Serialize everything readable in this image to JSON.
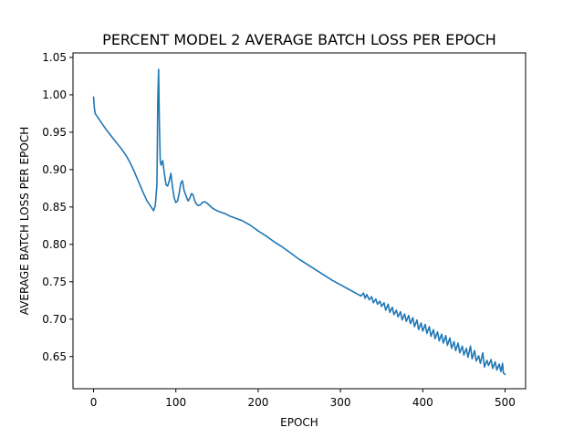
{
  "chart_data": {
    "type": "line",
    "title": "PERCENT MODEL 2 AVERAGE BATCH LOSS PER EPOCH",
    "xlabel": "EPOCH",
    "ylabel": "AVERAGE BATCH LOSS PER EPOCH",
    "xlim": [
      -25,
      525
    ],
    "ylim": [
      0.607,
      1.056
    ],
    "grid": false,
    "xticks": [
      0,
      100,
      200,
      300,
      400,
      500
    ],
    "xtick_labels": [
      "0",
      "100",
      "200",
      "300",
      "400",
      "500"
    ],
    "yticks": [
      0.65,
      0.7,
      0.75,
      0.8,
      0.85,
      0.9,
      0.95,
      1.0,
      1.05
    ],
    "ytick_labels": [
      "0.65",
      "0.70",
      "0.75",
      "0.80",
      "0.85",
      "0.90",
      "0.95",
      "1.00",
      "1.05"
    ],
    "series": [
      {
        "color": "#1f77b4",
        "x": [
          0,
          1,
          2,
          5,
          10,
          15,
          20,
          25,
          30,
          35,
          40,
          45,
          50,
          55,
          60,
          65,
          70,
          73,
          75,
          77,
          78,
          79,
          80,
          81,
          82,
          84,
          86,
          88,
          90,
          92,
          94,
          96,
          98,
          100,
          102,
          104,
          106,
          108,
          110,
          113,
          115,
          117,
          119,
          121,
          123,
          125,
          127,
          130,
          132,
          135,
          138,
          140,
          145,
          150,
          155,
          160,
          165,
          170,
          175,
          180,
          185,
          190,
          195,
          200,
          210,
          220,
          230,
          240,
          250,
          260,
          270,
          280,
          290,
          300,
          310,
          320,
          325,
          328,
          330,
          332,
          335,
          338,
          340,
          343,
          345,
          348,
          350,
          353,
          355,
          358,
          360,
          363,
          365,
          368,
          370,
          373,
          375,
          378,
          380,
          383,
          385,
          388,
          390,
          393,
          395,
          398,
          400,
          403,
          405,
          408,
          410,
          413,
          415,
          418,
          420,
          423,
          425,
          428,
          430,
          433,
          435,
          438,
          440,
          443,
          445,
          448,
          450,
          453,
          455,
          458,
          460,
          463,
          465,
          468,
          470,
          473,
          475,
          478,
          480,
          483,
          485,
          488,
          490,
          493,
          495,
          497,
          498,
          500
        ],
        "y": [
          0.997,
          0.982,
          0.975,
          0.97,
          0.962,
          0.954,
          0.947,
          0.94,
          0.933,
          0.926,
          0.918,
          0.908,
          0.896,
          0.883,
          0.87,
          0.858,
          0.85,
          0.845,
          0.852,
          0.88,
          0.99,
          1.034,
          0.96,
          0.912,
          0.906,
          0.912,
          0.895,
          0.88,
          0.878,
          0.885,
          0.895,
          0.876,
          0.862,
          0.856,
          0.858,
          0.868,
          0.882,
          0.885,
          0.872,
          0.863,
          0.858,
          0.862,
          0.868,
          0.866,
          0.858,
          0.854,
          0.852,
          0.853,
          0.856,
          0.857,
          0.855,
          0.853,
          0.848,
          0.845,
          0.843,
          0.841,
          0.838,
          0.836,
          0.834,
          0.832,
          0.829,
          0.826,
          0.822,
          0.818,
          0.811,
          0.803,
          0.796,
          0.788,
          0.78,
          0.773,
          0.766,
          0.759,
          0.752,
          0.746,
          0.74,
          0.734,
          0.731,
          0.735,
          0.728,
          0.733,
          0.726,
          0.73,
          0.722,
          0.727,
          0.72,
          0.724,
          0.717,
          0.722,
          0.712,
          0.72,
          0.709,
          0.716,
          0.706,
          0.712,
          0.703,
          0.71,
          0.699,
          0.707,
          0.697,
          0.705,
          0.694,
          0.702,
          0.69,
          0.699,
          0.686,
          0.695,
          0.684,
          0.693,
          0.681,
          0.69,
          0.677,
          0.686,
          0.674,
          0.683,
          0.671,
          0.68,
          0.668,
          0.678,
          0.665,
          0.675,
          0.661,
          0.67,
          0.658,
          0.668,
          0.655,
          0.664,
          0.652,
          0.661,
          0.649,
          0.664,
          0.647,
          0.658,
          0.644,
          0.651,
          0.641,
          0.655,
          0.636,
          0.645,
          0.638,
          0.646,
          0.634,
          0.643,
          0.632,
          0.64,
          0.63,
          0.641,
          0.628,
          0.626
        ]
      }
    ]
  }
}
